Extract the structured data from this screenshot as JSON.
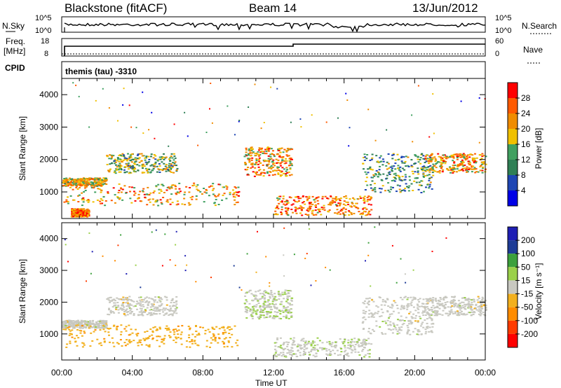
{
  "header": {
    "station": "Blackstone (fitACF)",
    "beam": "Beam 14",
    "date": "13/Jun/2012"
  },
  "top_panels": {
    "nsky_label": "N.Sky",
    "nsearch_label": "N.Search",
    "noise_ticks": [
      "10^5",
      "10^0"
    ],
    "freq_label_line1": "Freq.",
    "freq_label_line2": "[MHz]",
    "freq_ticks": [
      "18",
      "8"
    ],
    "nave_label": "Nave",
    "nave_ticks": [
      "60",
      "0"
    ],
    "cpid_label": "CPID",
    "cpid_value": "themis (tau) -3310"
  },
  "colors": {
    "power_scale": [
      "#0000e6",
      "#1e46b4",
      "#2f7f55",
      "#40a060",
      "#f0c000",
      "#f08c00",
      "#ff5a00",
      "#ff0000"
    ],
    "velocity_scale": [
      "#ff0000",
      "#ff3c00",
      "#ff8c00",
      "#f2b01e",
      "#c8c8c0",
      "#9ad04a",
      "#3ca03c",
      "#1e3c96",
      "#1e1eb4"
    ]
  },
  "chart_data": [
    {
      "type": "heatmap",
      "name": "power",
      "ylabel": "Slant Range [km]",
      "xlabel": "",
      "xlim": [
        0,
        24
      ],
      "ylim": [
        180,
        4500
      ],
      "yticks": [
        "1000",
        "2000",
        "3000",
        "4000"
      ],
      "colorbar": {
        "label": "Power [dB]",
        "ticks": [
          "4",
          "8",
          "12",
          "16",
          "20",
          "24",
          "28"
        ],
        "range": [
          0,
          30
        ]
      },
      "scatter_regions": [
        {
          "t0": 0.0,
          "t1": 2.5,
          "r0": 1200,
          "r1": 1450,
          "value": 18
        },
        {
          "t0": 2.5,
          "t1": 6.5,
          "r0": 1600,
          "r1": 2200,
          "value": 14
        },
        {
          "t0": 0.0,
          "t1": 10.0,
          "r0": 600,
          "r1": 1300,
          "value": 20
        },
        {
          "t0": 0.5,
          "t1": 1.5,
          "r0": 250,
          "r1": 500,
          "value": 24
        },
        {
          "t0": 10.3,
          "t1": 13.0,
          "r0": 1500,
          "r1": 2400,
          "value": 20
        },
        {
          "t0": 12.0,
          "t1": 17.5,
          "r0": 300,
          "r1": 900,
          "value": 22
        },
        {
          "t0": 17.0,
          "t1": 21.0,
          "r0": 1000,
          "r1": 2200,
          "value": 12
        },
        {
          "t0": 20.5,
          "t1": 24.0,
          "r0": 1600,
          "r1": 2200,
          "value": 20
        }
      ]
    },
    {
      "type": "heatmap",
      "name": "velocity",
      "ylabel": "Slant Range [km]",
      "xlabel": "Time UT",
      "xlim": [
        0,
        24
      ],
      "ylim": [
        180,
        4500
      ],
      "xticks": [
        "00:00",
        "04:00",
        "08:00",
        "12:00",
        "16:00",
        "20:00",
        "00:00"
      ],
      "yticks": [
        "1000",
        "2000",
        "3000",
        "4000"
      ],
      "colorbar": {
        "label": "Velocity [m s⁻¹]",
        "ticks": [
          "200",
          "100",
          "50",
          "15",
          "-15",
          "-50",
          "-100",
          "-200"
        ],
        "range": [
          -250,
          250
        ]
      },
      "scatter_regions": [
        {
          "t0": 0.0,
          "t1": 2.5,
          "r0": 1200,
          "r1": 1450,
          "value": 0
        },
        {
          "t0": 2.5,
          "t1": 6.5,
          "r0": 1600,
          "r1": 2200,
          "value": 0
        },
        {
          "t0": 0.0,
          "t1": 10.0,
          "r0": 600,
          "r1": 1300,
          "value": -60
        },
        {
          "t0": 10.3,
          "t1": 13.0,
          "r0": 1500,
          "r1": 2400,
          "value": 20
        },
        {
          "t0": 12.0,
          "t1": 17.5,
          "r0": 300,
          "r1": 900,
          "value": 10
        },
        {
          "t0": 17.0,
          "t1": 21.0,
          "r0": 1000,
          "r1": 2200,
          "value": 0
        },
        {
          "t0": 20.5,
          "t1": 24.0,
          "r0": 1600,
          "r1": 2200,
          "value": 0
        }
      ]
    }
  ]
}
